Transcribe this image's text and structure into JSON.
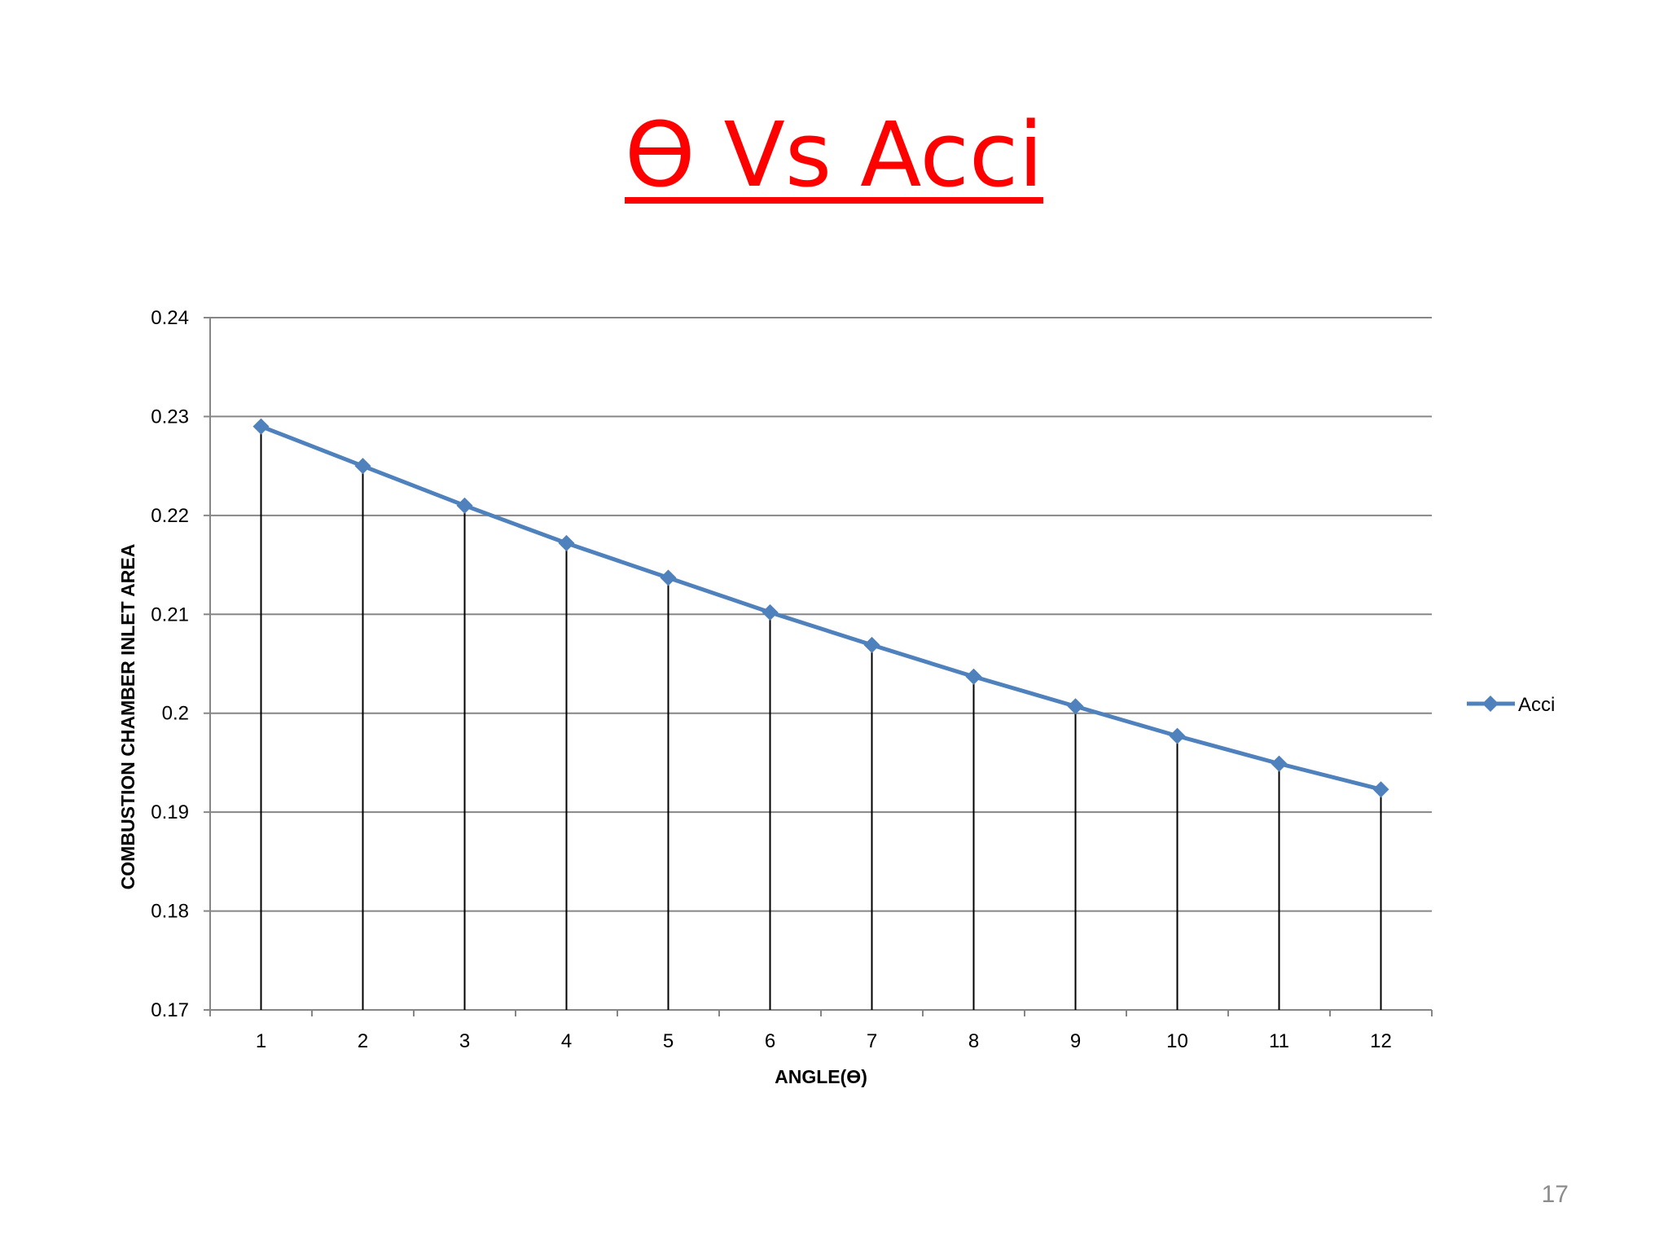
{
  "slide": {
    "title": "ϴ Vs Acci",
    "title_color": "#ff0000",
    "page_number": "17"
  },
  "chart_data": {
    "type": "line",
    "title": "",
    "xlabel": "ANGLE(ϴ)",
    "ylabel": "COMBUSTION CHAMBER INLET AREA",
    "categories": [
      "1",
      "2",
      "3",
      "4",
      "5",
      "6",
      "7",
      "8",
      "9",
      "10",
      "11",
      "12"
    ],
    "series": [
      {
        "name": "Acci",
        "color": "#4f81bd",
        "marker": "diamond",
        "values": [
          0.229,
          0.225,
          0.221,
          0.2172,
          0.2137,
          0.2102,
          0.2069,
          0.2037,
          0.2007,
          0.1977,
          0.1949,
          0.1923
        ]
      }
    ],
    "ylim": [
      0.17,
      0.24
    ],
    "yticks": [
      0.24,
      0.23,
      0.22,
      0.21,
      0.2,
      0.19,
      0.18,
      0.17
    ],
    "ytick_labels": [
      "0.24",
      "0.23",
      "0.22",
      "0.21",
      "0.2",
      "0.19",
      "0.18",
      "0.17"
    ],
    "drop_lines": true,
    "grid": "horizontal",
    "legend": "right",
    "gridline_color": "#868686",
    "drop_line_color": "#000000"
  }
}
